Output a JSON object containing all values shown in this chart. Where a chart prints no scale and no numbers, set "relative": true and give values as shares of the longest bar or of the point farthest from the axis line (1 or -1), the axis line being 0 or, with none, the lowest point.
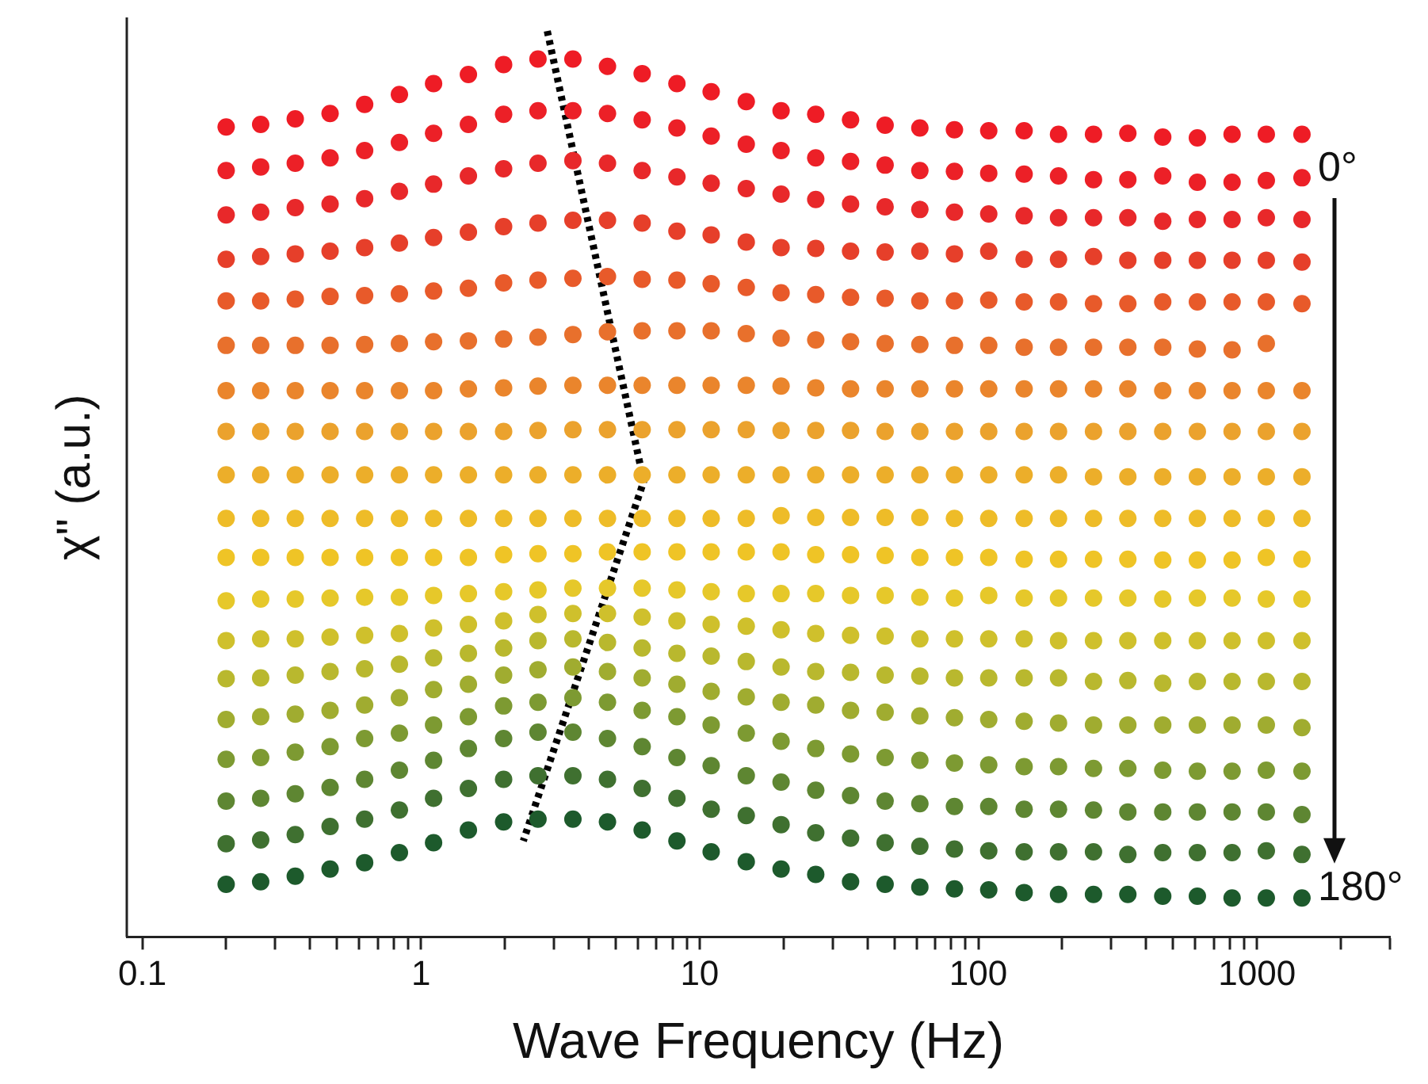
{
  "chart_data": {
    "type": "scatter",
    "xlabel": "Wave Frequency (Hz)",
    "ylabel": "χ\" (a.u.)",
    "relative": true,
    "log": "x",
    "marker": "circle",
    "annotations": [
      "0°",
      "180°"
    ],
    "xlim": [
      0.088,
      3000
    ],
    "xticks": [
      0.1,
      {
        "value": 0.2,
        "label": null
      },
      {
        "value": 0.3,
        "label": null
      },
      {
        "value": 0.4,
        "label": null
      },
      {
        "value": 0.5,
        "label": null
      },
      {
        "value": 0.6,
        "label": null
      },
      {
        "value": 0.7,
        "label": null
      },
      {
        "value": 0.8,
        "label": null
      },
      {
        "value": 0.9,
        "label": null
      },
      1,
      {
        "value": 2,
        "label": null
      },
      {
        "value": 3,
        "label": null
      },
      {
        "value": 4,
        "label": null
      },
      {
        "value": 5,
        "label": null
      },
      {
        "value": 6,
        "label": null
      },
      {
        "value": 7,
        "label": null
      },
      {
        "value": 8,
        "label": null
      },
      {
        "value": 9,
        "label": null
      },
      10,
      {
        "value": 20,
        "label": null
      },
      {
        "value": 30,
        "label": null
      },
      {
        "value": 40,
        "label": null
      },
      {
        "value": 50,
        "label": null
      },
      {
        "value": 60,
        "label": null
      },
      {
        "value": 70,
        "label": null
      },
      {
        "value": 80,
        "label": null
      },
      {
        "value": 90,
        "label": null
      },
      100,
      {
        "value": 200,
        "label": null
      },
      {
        "value": 300,
        "label": null
      },
      {
        "value": 400,
        "label": null
      },
      {
        "value": 500,
        "label": null
      },
      {
        "value": 600,
        "label": null
      },
      {
        "value": 700,
        "label": null
      },
      {
        "value": 800,
        "label": null
      },
      {
        "value": 900,
        "label": null
      },
      1000,
      {
        "value": 2000,
        "label": null
      },
      {
        "value": 3000,
        "label": null
      }
    ],
    "x": [
      0.2,
      0.266,
      0.354,
      0.472,
      0.628,
      0.837,
      1.11,
      1.48,
      1.98,
      2.63,
      3.51,
      4.67,
      6.22,
      8.29,
      11.0,
      14.7,
      19.6,
      26.1,
      34.8,
      46.3,
      61.7,
      82.1,
      109,
      146,
      194,
      259,
      344,
      459,
      611,
      814,
      1080,
      1450
    ],
    "series": [
      {
        "color": "#ee1c25",
        "values": [
          0.894,
          0.897,
          0.903,
          0.909,
          0.919,
          0.93,
          0.942,
          0.952,
          0.963,
          0.969,
          0.969,
          0.961,
          0.953,
          0.942,
          0.933,
          0.922,
          0.912,
          0.908,
          0.902,
          0.896,
          0.893,
          0.891,
          0.89,
          0.89,
          0.886,
          0.886,
          0.887,
          0.883,
          0.882,
          0.886,
          0.886,
          0.886
        ]
      },
      {
        "color": "#ec2027",
        "values": [
          0.846,
          0.85,
          0.854,
          0.86,
          0.868,
          0.877,
          0.887,
          0.897,
          0.908,
          0.912,
          0.912,
          0.909,
          0.902,
          0.893,
          0.884,
          0.875,
          0.868,
          0.86,
          0.856,
          0.852,
          0.846,
          0.845,
          0.843,
          0.842,
          0.84,
          0.836,
          0.836,
          0.84,
          0.833,
          0.833,
          0.835,
          0.838
        ]
      },
      {
        "color": "#e8282a",
        "values": [
          0.797,
          0.8,
          0.805,
          0.809,
          0.815,
          0.823,
          0.831,
          0.84,
          0.848,
          0.854,
          0.857,
          0.854,
          0.846,
          0.839,
          0.832,
          0.826,
          0.82,
          0.814,
          0.809,
          0.806,
          0.803,
          0.8,
          0.798,
          0.796,
          0.794,
          0.794,
          0.794,
          0.79,
          0.792,
          0.792,
          0.794,
          0.792
        ]
      },
      {
        "color": "#e63f2a",
        "values": [
          0.748,
          0.751,
          0.754,
          0.757,
          0.761,
          0.766,
          0.772,
          0.778,
          0.784,
          0.788,
          0.791,
          0.791,
          0.788,
          0.779,
          0.775,
          0.767,
          0.761,
          0.76,
          0.757,
          0.756,
          0.757,
          0.754,
          0.757,
          0.748,
          0.748,
          0.751,
          0.747,
          0.747,
          0.747,
          0.747,
          0.747,
          0.745
        ]
      },
      {
        "color": "#e85a2a",
        "values": [
          0.702,
          0.702,
          0.704,
          0.707,
          0.708,
          0.71,
          0.713,
          0.716,
          0.722,
          0.725,
          0.727,
          0.729,
          0.726,
          0.725,
          0.721,
          0.717,
          0.711,
          0.709,
          0.706,
          0.705,
          0.702,
          0.702,
          0.703,
          0.701,
          0.701,
          0.699,
          0.699,
          0.701,
          0.701,
          0.701,
          0.701,
          0.699
        ]
      },
      {
        "color": "#e8702c",
        "values": [
          0.653,
          0.653,
          0.653,
          0.653,
          0.654,
          0.655,
          0.657,
          0.658,
          0.66,
          0.662,
          0.665,
          0.668,
          0.669,
          0.669,
          0.669,
          0.666,
          0.661,
          0.659,
          0.657,
          0.655,
          0.654,
          0.653,
          0.653,
          0.651,
          0.651,
          0.651,
          0.651,
          0.651,
          0.649,
          0.648,
          0.655,
          null
        ]
      },
      {
        "color": "#ea852c",
        "values": [
          0.603,
          0.603,
          0.603,
          0.603,
          0.603,
          0.603,
          0.603,
          0.605,
          0.606,
          0.608,
          0.609,
          0.609,
          0.609,
          0.609,
          0.609,
          0.609,
          0.608,
          0.606,
          0.605,
          0.605,
          0.605,
          0.605,
          0.605,
          0.605,
          0.605,
          0.605,
          0.605,
          0.603,
          0.603,
          0.603,
          0.603,
          0.603
        ]
      },
      {
        "color": "#eba22d",
        "values": [
          0.558,
          0.558,
          0.558,
          0.558,
          0.558,
          0.558,
          0.558,
          0.558,
          0.558,
          0.559,
          0.56,
          0.56,
          0.56,
          0.56,
          0.56,
          0.56,
          0.559,
          0.559,
          0.559,
          0.558,
          0.558,
          0.558,
          0.558,
          0.558,
          0.558,
          0.558,
          0.558,
          0.558,
          0.558,
          0.558,
          0.558,
          0.558
        ]
      },
      {
        "color": "#ecae2a",
        "values": [
          0.51,
          0.51,
          0.51,
          0.51,
          0.51,
          0.51,
          0.51,
          0.51,
          0.51,
          0.51,
          0.51,
          0.51,
          0.51,
          0.51,
          0.51,
          0.51,
          0.51,
          0.51,
          0.51,
          0.51,
          0.51,
          0.51,
          0.51,
          0.51,
          0.51,
          0.508,
          0.508,
          0.508,
          0.508,
          0.508,
          0.508,
          0.508
        ]
      },
      {
        "color": "#eebc28",
        "values": [
          0.462,
          0.462,
          0.462,
          0.462,
          0.462,
          0.462,
          0.462,
          0.462,
          0.462,
          0.462,
          0.462,
          0.462,
          0.462,
          0.462,
          0.462,
          0.462,
          0.465,
          0.463,
          0.463,
          0.463,
          0.463,
          0.462,
          0.462,
          0.462,
          0.462,
          0.462,
          0.462,
          0.462,
          0.462,
          0.462,
          0.462,
          0.462
        ]
      },
      {
        "color": "#efc426",
        "values": [
          0.419,
          0.419,
          0.419,
          0.419,
          0.419,
          0.419,
          0.419,
          0.419,
          0.422,
          0.423,
          0.423,
          0.425,
          0.425,
          0.425,
          0.425,
          0.425,
          0.425,
          0.422,
          0.422,
          0.421,
          0.419,
          0.419,
          0.419,
          0.417,
          0.417,
          0.417,
          0.417,
          0.416,
          0.416,
          0.416,
          0.419,
          0.417
        ]
      },
      {
        "color": "#e6c82a",
        "values": [
          0.371,
          0.373,
          0.373,
          0.374,
          0.375,
          0.375,
          0.377,
          0.379,
          0.381,
          0.383,
          0.385,
          0.385,
          0.385,
          0.383,
          0.381,
          0.379,
          0.379,
          0.379,
          0.377,
          0.377,
          0.375,
          0.374,
          0.377,
          0.374,
          0.374,
          0.374,
          0.374,
          0.373,
          0.374,
          0.374,
          0.373,
          0.373
        ]
      },
      {
        "color": "#cfc02c",
        "values": [
          0.327,
          0.329,
          0.329,
          0.331,
          0.333,
          0.335,
          0.341,
          0.345,
          0.349,
          0.356,
          0.357,
          0.357,
          0.353,
          0.349,
          0.345,
          0.343,
          0.339,
          0.335,
          0.333,
          0.332,
          0.329,
          0.329,
          0.329,
          0.329,
          0.327,
          0.327,
          0.327,
          0.327,
          0.327,
          0.327,
          0.327,
          0.327
        ]
      },
      {
        "color": "#b9b82e",
        "values": [
          0.285,
          0.286,
          0.289,
          0.293,
          0.296,
          0.301,
          0.308,
          0.313,
          0.319,
          0.327,
          0.329,
          0.325,
          0.319,
          0.313,
          0.31,
          0.304,
          0.298,
          0.293,
          0.292,
          0.289,
          0.288,
          0.286,
          0.286,
          0.286,
          0.286,
          0.282,
          0.283,
          0.28,
          0.282,
          0.282,
          0.282,
          0.282
        ]
      },
      {
        "color": "#a0ac30",
        "values": [
          0.24,
          0.243,
          0.246,
          0.25,
          0.256,
          0.264,
          0.273,
          0.279,
          0.289,
          0.295,
          0.298,
          0.293,
          0.286,
          0.279,
          0.271,
          0.265,
          0.259,
          0.256,
          0.25,
          0.248,
          0.244,
          0.242,
          0.24,
          0.238,
          0.236,
          0.234,
          0.234,
          0.234,
          0.234,
          0.234,
          0.234,
          0.231
        ]
      },
      {
        "color": "#7d9a32",
        "values": [
          0.196,
          0.198,
          0.204,
          0.21,
          0.219,
          0.225,
          0.234,
          0.243,
          0.255,
          0.259,
          0.264,
          0.259,
          0.25,
          0.243,
          0.234,
          0.225,
          0.216,
          0.208,
          0.202,
          0.198,
          0.195,
          0.192,
          0.19,
          0.188,
          0.188,
          0.186,
          0.186,
          0.184,
          0.183,
          0.183,
          0.184,
          0.183
        ]
      },
      {
        "color": "#5e8632",
        "values": [
          0.15,
          0.153,
          0.158,
          0.165,
          0.174,
          0.184,
          0.195,
          0.208,
          0.219,
          0.226,
          0.226,
          0.219,
          0.21,
          0.198,
          0.189,
          0.178,
          0.171,
          0.162,
          0.156,
          0.15,
          0.147,
          0.144,
          0.144,
          0.141,
          0.141,
          0.14,
          0.138,
          0.138,
          0.138,
          0.138,
          0.138,
          0.135
        ]
      },
      {
        "color": "#3f7030",
        "values": [
          0.103,
          0.107,
          0.113,
          0.122,
          0.13,
          0.14,
          0.153,
          0.164,
          0.174,
          0.178,
          0.178,
          0.174,
          0.164,
          0.153,
          0.141,
          0.134,
          0.124,
          0.115,
          0.109,
          0.104,
          0.1,
          0.097,
          0.095,
          0.094,
          0.094,
          0.094,
          0.091,
          0.093,
          0.093,
          0.093,
          0.095,
          0.091
        ]
      },
      {
        "color": "#1d5a2c",
        "values": [
          0.058,
          0.061,
          0.067,
          0.075,
          0.082,
          0.093,
          0.104,
          0.118,
          0.127,
          0.13,
          0.13,
          0.127,
          0.118,
          0.106,
          0.094,
          0.083,
          0.075,
          0.069,
          0.061,
          0.058,
          0.055,
          0.053,
          0.052,
          0.049,
          0.047,
          0.047,
          0.047,
          0.045,
          0.045,
          0.043,
          0.043,
          0.043
        ]
      },
      {
        "type": "line",
        "color": "#000000",
        "marker": "none",
        "line_style": "dotted",
        "x": [
          2.84,
          6.3,
          2.33
        ],
        "values": [
          1,
          0.503,
          0.106
        ]
      }
    ]
  }
}
